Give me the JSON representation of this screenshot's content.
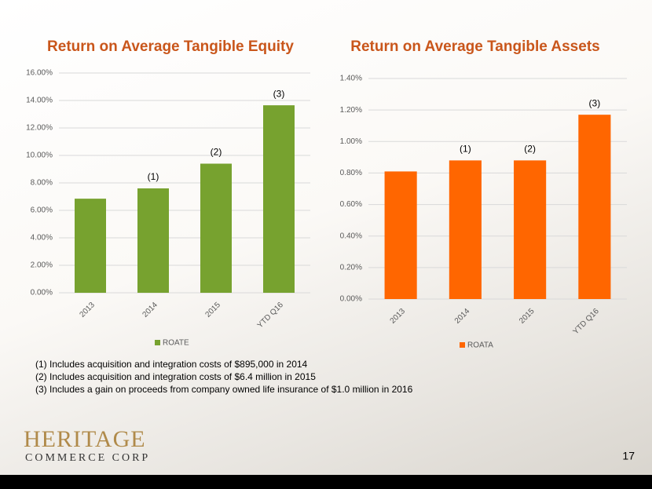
{
  "chart_data": [
    {
      "type": "bar",
      "title": "Return on Average Tangible Equity",
      "categories": [
        "2013",
        "2014",
        "2015",
        "YTD Q16"
      ],
      "series": [
        {
          "name": "ROATE",
          "color": "#77a22f",
          "values": [
            6.85,
            7.6,
            9.4,
            13.65
          ]
        }
      ],
      "annotations": [
        null,
        "(1)",
        "(2)",
        "(3)"
      ],
      "ylim": [
        0,
        16
      ],
      "yticks": [
        {
          "value": 0,
          "label": "0.00%"
        },
        {
          "value": 2,
          "label": "2.00%"
        },
        {
          "value": 4,
          "label": "4.00%"
        },
        {
          "value": 6,
          "label": "6.00%"
        },
        {
          "value": 8,
          "label": "8.00%"
        },
        {
          "value": 10,
          "label": "10.00%"
        },
        {
          "value": 12,
          "label": "12.00%"
        },
        {
          "value": 14,
          "label": "14.00%"
        },
        {
          "value": 16,
          "label": "16.00%"
        }
      ],
      "grid": true,
      "legend": "bottom"
    },
    {
      "type": "bar",
      "title": "Return on Average Tangible Assets",
      "categories": [
        "2013",
        "2014",
        "2015",
        "YTD Q16"
      ],
      "series": [
        {
          "name": "ROATA",
          "color": "#ff6600",
          "values": [
            0.81,
            0.88,
            0.88,
            1.17
          ]
        }
      ],
      "annotations": [
        null,
        "(1)",
        "(2)",
        "(3)"
      ],
      "ylim": [
        0,
        1.4
      ],
      "yticks": [
        {
          "value": 0,
          "label": "0.00%"
        },
        {
          "value": 0.2,
          "label": "0.20%"
        },
        {
          "value": 0.4,
          "label": "0.40%"
        },
        {
          "value": 0.6,
          "label": "0.60%"
        },
        {
          "value": 0.8,
          "label": "0.80%"
        },
        {
          "value": 1.0,
          "label": "1.00%"
        },
        {
          "value": 1.2,
          "label": "1.20%"
        },
        {
          "value": 1.4,
          "label": "1.40%"
        }
      ],
      "grid": true,
      "legend": "bottom"
    }
  ],
  "footnotes": [
    "(1)  Includes acquisition and integration costs of $895,000 in 2014",
    "(2)  Includes acquisition and integration costs of $6.4 million in 2015",
    "(3)  Includes a gain on proceeds from company owned life insurance of $1.0 million in 2016"
  ],
  "logo": {
    "name": "HERITAGE",
    "subtitle": "COMMERCE CORP"
  },
  "page_number": "17"
}
